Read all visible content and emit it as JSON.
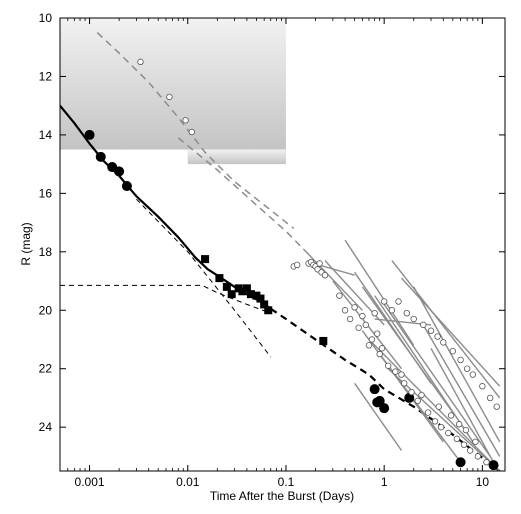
{
  "chart_data": {
    "type": "scatter",
    "xlabel": "Time After the Burst  (Days)",
    "ylabel": "R  (mag)",
    "x_scale": "log",
    "y_inverted": true,
    "xlim": [
      0.0005,
      17
    ],
    "ylim": [
      10,
      25.5
    ],
    "x_ticks": [
      0.001,
      0.01,
      0.1,
      1,
      10
    ],
    "x_tick_labels": [
      "0.001",
      "0.01",
      "0.1",
      "1",
      "10"
    ],
    "y_ticks": [
      10,
      12,
      14,
      16,
      18,
      20,
      22,
      24
    ],
    "y_tick_labels": [
      "10",
      "12",
      "14",
      "16",
      "18",
      "20",
      "22",
      "24"
    ],
    "grid": false,
    "legend": "none",
    "shaded_regions": [
      {
        "x": [
          0.0005,
          0.1
        ],
        "y": [
          10,
          14.5
        ]
      },
      {
        "x": [
          0.01,
          0.1
        ],
        "y": [
          14.5,
          15.0
        ]
      }
    ],
    "series": [
      {
        "style": "thick-black-solid-fit",
        "x": [
          0.0005,
          0.0007,
          0.001,
          0.0014,
          0.002,
          0.003,
          0.005,
          0.008,
          0.012,
          0.016,
          0.022,
          0.03,
          0.04,
          0.055,
          0.07
        ],
        "y": [
          13.0,
          13.6,
          14.3,
          14.9,
          15.4,
          16.1,
          16.8,
          17.5,
          18.2,
          18.6,
          18.9,
          19.2,
          19.45,
          19.7,
          19.95
        ]
      },
      {
        "style": "thick-black-dashed-extrapolation",
        "x": [
          0.07,
          0.1,
          0.2,
          0.4,
          0.7,
          1.0,
          2,
          4,
          8,
          15
        ],
        "y": [
          19.95,
          20.3,
          21.0,
          21.7,
          22.2,
          22.7,
          23.3,
          24.0,
          24.8,
          25.5
        ]
      },
      {
        "style": "thin-black-dashed-power-law",
        "x": [
          0.003,
          0.01,
          0.03,
          0.07
        ],
        "y": [
          16.2,
          18.0,
          20.0,
          21.6
        ]
      },
      {
        "style": "thin-black-dashed-plateau",
        "x": [
          0.0005,
          0.014,
          0.02,
          0.04,
          0.07
        ],
        "y": [
          19.15,
          19.15,
          19.4,
          19.8,
          20.1
        ]
      },
      {
        "style": "grey-dashed",
        "x": [
          0.0012,
          0.002,
          0.004,
          0.008,
          0.015,
          0.03,
          0.06,
          0.12
        ],
        "y": [
          10.5,
          11.2,
          12.2,
          13.4,
          14.6,
          15.6,
          16.4,
          17.2
        ]
      },
      {
        "style": "grey-dashed",
        "x": [
          0.008,
          0.02,
          0.05,
          0.1,
          0.15
        ],
        "y": [
          14.1,
          15.2,
          16.4,
          17.3,
          17.9
        ]
      },
      {
        "style": "black-filled-circles",
        "x": [
          0.001,
          0.0013,
          0.0017,
          0.002,
          0.0024,
          0.8,
          0.85,
          0.9,
          1.0,
          1.8,
          6.0,
          13.0
        ],
        "y": [
          14.0,
          14.75,
          15.1,
          15.25,
          15.75,
          22.7,
          23.15,
          23.1,
          23.35,
          23.0,
          25.2,
          25.3
        ]
      },
      {
        "style": "black-filled-squares",
        "x": [
          0.015,
          0.021,
          0.025,
          0.028,
          0.033,
          0.036,
          0.04,
          0.044,
          0.05,
          0.055,
          0.06,
          0.066,
          0.24
        ],
        "y": [
          18.25,
          18.9,
          19.2,
          19.45,
          19.25,
          19.35,
          19.25,
          19.45,
          19.5,
          19.6,
          19.8,
          20.0,
          21.05
        ]
      },
      {
        "style": "open-circles",
        "x": [
          0.0033,
          0.0065,
          0.0095,
          0.011,
          0.17,
          0.18,
          0.19,
          0.2,
          0.21,
          0.22,
          0.23,
          0.25,
          0.35,
          0.5,
          0.6,
          0.8,
          1.0,
          1.2,
          1.4,
          1.7,
          2.0,
          2.5,
          3.0,
          3.5,
          4.0,
          5.0,
          6.0,
          7.0,
          8.0,
          10.0,
          12.0,
          14.0,
          0.7,
          0.9,
          1.1,
          1.3,
          1.6,
          1.9,
          2.2,
          2.8,
          3.3,
          3.8,
          4.5,
          5.5,
          6.5,
          7.5,
          9.0,
          11.0,
          0.12,
          0.13,
          0.55,
          0.75,
          0.95,
          1.5,
          2.4,
          3.6,
          4.8,
          5.8,
          6.8,
          8.5,
          0.4,
          0.45,
          0.65,
          0.85
        ],
        "y": [
          11.5,
          12.7,
          13.5,
          13.9,
          18.4,
          18.35,
          18.45,
          18.5,
          18.6,
          18.4,
          18.7,
          18.8,
          19.5,
          19.9,
          20.2,
          20.1,
          19.7,
          20.0,
          19.7,
          20.1,
          20.3,
          20.5,
          20.7,
          20.9,
          21.1,
          21.4,
          21.7,
          22.0,
          22.2,
          22.6,
          23.0,
          23.3,
          21.2,
          21.5,
          21.9,
          22.1,
          22.5,
          22.8,
          23.1,
          23.5,
          23.8,
          24.0,
          24.2,
          24.4,
          24.6,
          24.8,
          25.0,
          25.2,
          18.5,
          18.45,
          20.6,
          21.0,
          21.3,
          22.2,
          22.9,
          23.3,
          23.6,
          23.9,
          24.1,
          24.5,
          20.0,
          20.3,
          20.5,
          20.8
        ]
      },
      {
        "style": "grey-solid-lines",
        "segments": [
          {
            "x": [
              0.15,
              0.6
            ],
            "y": [
              17.9,
              20.0
            ]
          },
          {
            "x": [
              0.25,
              1.0
            ],
            "y": [
              18.3,
              20.5
            ]
          },
          {
            "x": [
              0.4,
              2.0
            ],
            "y": [
              17.6,
              21.2
            ]
          },
          {
            "x": [
              0.5,
              3.0
            ],
            "y": [
              18.7,
              22.5
            ]
          },
          {
            "x": [
              0.6,
              5.0
            ],
            "y": [
              19.2,
              23.5
            ]
          },
          {
            "x": [
              0.8,
              8.0
            ],
            "y": [
              19.5,
              24.5
            ]
          },
          {
            "x": [
              1.0,
              12.0
            ],
            "y": [
              19.8,
              25.0
            ]
          },
          {
            "x": [
              0.7,
              15.0
            ],
            "y": [
              21.0,
              25.5
            ]
          },
          {
            "x": [
              1.2,
              15.0
            ],
            "y": [
              18.3,
              23.0
            ]
          },
          {
            "x": [
              1.5,
              15.0
            ],
            "y": [
              18.9,
              22.6
            ]
          },
          {
            "x": [
              2.0,
              15.0
            ],
            "y": [
              19.2,
              24.5
            ]
          },
          {
            "x": [
              2.5,
              15.0
            ],
            "y": [
              20.5,
              25.0
            ]
          },
          {
            "x": [
              3.0,
              14.0
            ],
            "y": [
              21.3,
              25.4
            ]
          },
          {
            "x": [
              0.3,
              1.5
            ],
            "y": [
              19.0,
              22.0
            ]
          },
          {
            "x": [
              0.6,
              4.0
            ],
            "y": [
              20.7,
              24.5
            ]
          },
          {
            "x": [
              0.9,
              6.0
            ],
            "y": [
              21.5,
              25.2
            ]
          },
          {
            "x": [
              1.1,
              15.0
            ],
            "y": [
              22.0,
              25.5
            ]
          },
          {
            "x": [
              0.5,
              1.5
            ],
            "y": [
              22.5,
              24.8
            ]
          },
          {
            "x": [
              0.17,
              0.5
            ],
            "y": [
              18.35,
              18.8
            ]
          },
          {
            "x": [
              0.8,
              3.0
            ],
            "y": [
              20.3,
              20.5
            ]
          }
        ]
      }
    ]
  }
}
